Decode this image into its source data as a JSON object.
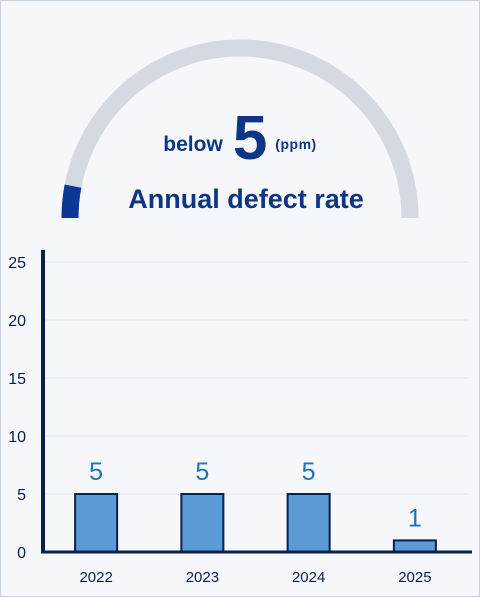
{
  "headline": {
    "prefix": "below",
    "value": "5",
    "unit": "(ppm)",
    "title": "Annual defect rate"
  },
  "gauge": {
    "fill_fraction": 0.06,
    "track_color": "#d5dae2",
    "fill_color": "#0a3894"
  },
  "colors": {
    "text": "#0f3585",
    "bar_fill": "#5b9bd5",
    "bar_stroke": "#0b1f4d",
    "value_label": "#1f73b7",
    "axis": "#0b1f4d"
  },
  "chart_data": {
    "type": "bar",
    "categories": [
      "2022",
      "2023",
      "2024",
      "2025"
    ],
    "values": [
      5,
      5,
      5,
      1
    ],
    "value_labels": [
      "5",
      "5",
      "5",
      "1"
    ],
    "title": "",
    "xlabel": "",
    "ylabel": "",
    "ylim": [
      0,
      25
    ],
    "yticks": [
      "0",
      "5",
      "10",
      "15",
      "20",
      "25"
    ],
    "grid": true
  }
}
